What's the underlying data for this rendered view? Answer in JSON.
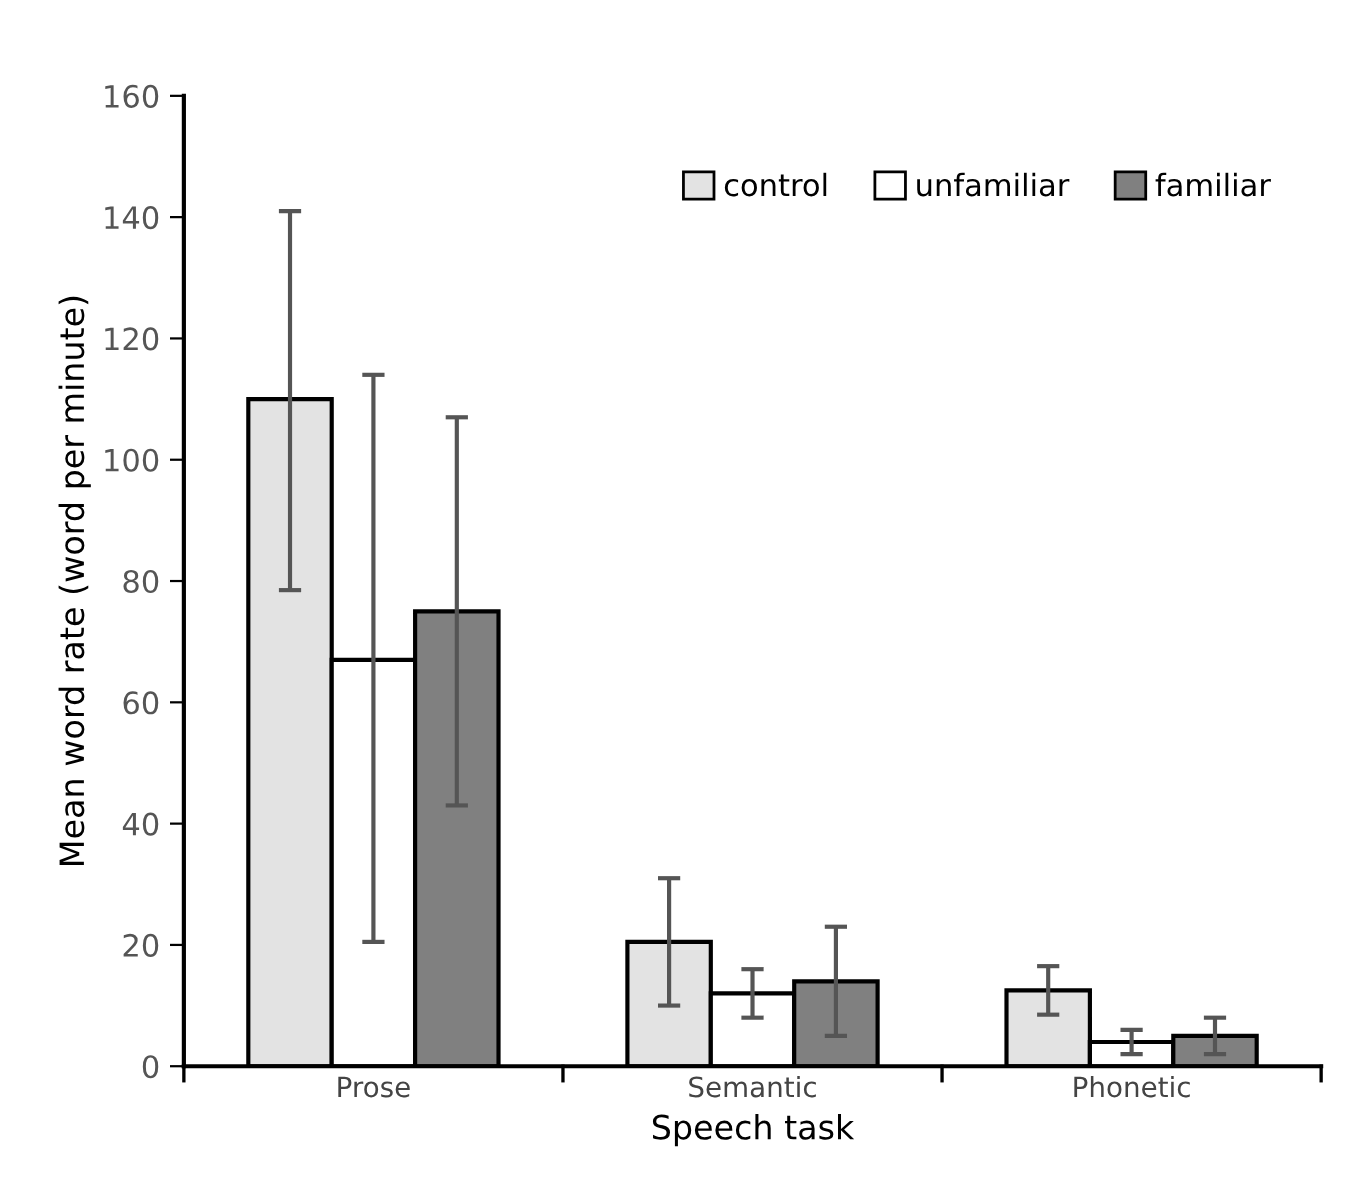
{
  "chart_data": {
    "type": "bar",
    "xlabel": "Speech task",
    "ylabel": "Mean word rate (word per minute)",
    "categories": [
      "Prose",
      "Semantic",
      "Phonetic"
    ],
    "series": [
      {
        "name": "control",
        "color": "#e3e3e3",
        "values": [
          110,
          20.5,
          12.5
        ],
        "errors": [
          [
            78.5,
            141
          ],
          [
            10,
            31
          ],
          [
            8.5,
            16.5
          ]
        ]
      },
      {
        "name": "unfamiliar",
        "color": "#ffffff",
        "values": [
          67,
          12,
          4
        ],
        "errors": [
          [
            20.5,
            114
          ],
          [
            8,
            16
          ],
          [
            2,
            6
          ]
        ]
      },
      {
        "name": "familiar",
        "color": "#808080",
        "values": [
          75,
          14,
          5
        ],
        "errors": [
          [
            43,
            107
          ],
          [
            5,
            23
          ],
          [
            2,
            8
          ]
        ]
      }
    ],
    "ylim": [
      0,
      160
    ],
    "yticks": [
      0,
      20,
      40,
      60,
      80,
      100,
      120,
      140,
      160
    ],
    "grid": false,
    "legend": "top right"
  }
}
